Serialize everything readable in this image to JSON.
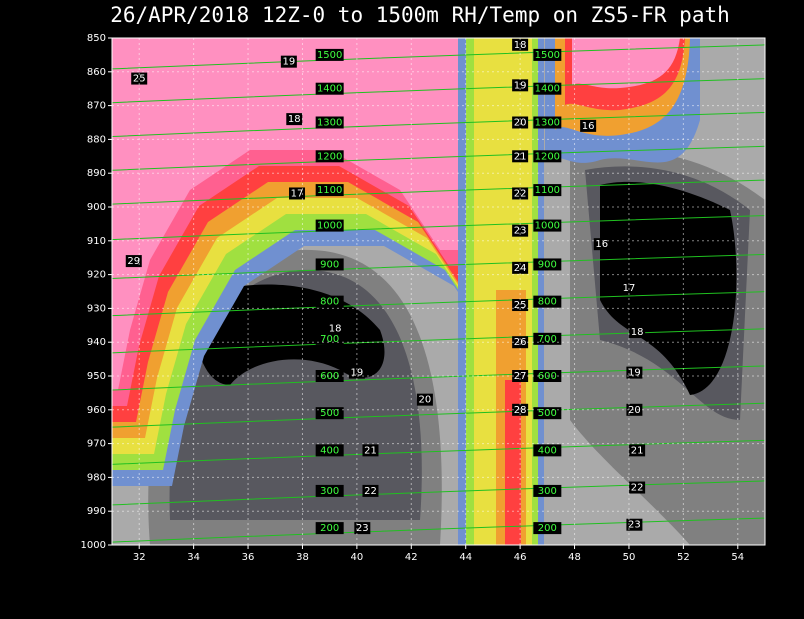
{
  "chart_data": {
    "type": "contour",
    "title": "26/APR/2018 12Z-0 to 1500m RH/Temp on ZS5-FR path",
    "xlim": [
      31,
      55
    ],
    "ylim": [
      850,
      1000
    ],
    "xticks": [
      32,
      34,
      36,
      38,
      40,
      42,
      44,
      46,
      48,
      50,
      52,
      54
    ],
    "yticks": [
      850,
      860,
      870,
      880,
      890,
      900,
      910,
      920,
      930,
      940,
      950,
      960,
      970,
      980,
      990,
      1000
    ],
    "height_contours": {
      "x": [
        39,
        47
      ],
      "values": [
        1500,
        1400,
        1300,
        1200,
        1100,
        1000,
        900,
        800,
        700,
        600,
        500,
        400,
        300,
        200
      ],
      "y": [
        855,
        865,
        875,
        885,
        895,
        905.5,
        917,
        928,
        939,
        950,
        961,
        972,
        984,
        995
      ]
    },
    "temperature_labels": {
      "x": [
        32,
        37.5,
        37.7,
        37.8,
        31.8,
        46,
        46,
        46,
        46,
        46,
        46,
        46,
        46,
        46,
        46,
        46,
        48.5,
        49,
        50,
        39.2,
        50.3,
        40,
        50.2,
        42.5,
        50.2,
        40.5,
        50.3,
        40.5,
        50.3,
        40.2,
        50.2
      ],
      "y": [
        862,
        857,
        874,
        896,
        916,
        852,
        864,
        875,
        885,
        896,
        907,
        918,
        929,
        940,
        950,
        960,
        876,
        911,
        924,
        936,
        937,
        949,
        949,
        957,
        960,
        972,
        972,
        984,
        983,
        995,
        994
      ],
      "values": [
        25,
        19,
        18,
        17,
        29,
        18,
        19,
        20,
        21,
        22,
        23,
        24,
        25,
        26,
        27,
        28,
        16,
        16,
        17,
        18,
        18,
        19,
        19,
        20,
        20,
        21,
        21,
        22,
        22,
        23,
        23
      ]
    }
  }
}
